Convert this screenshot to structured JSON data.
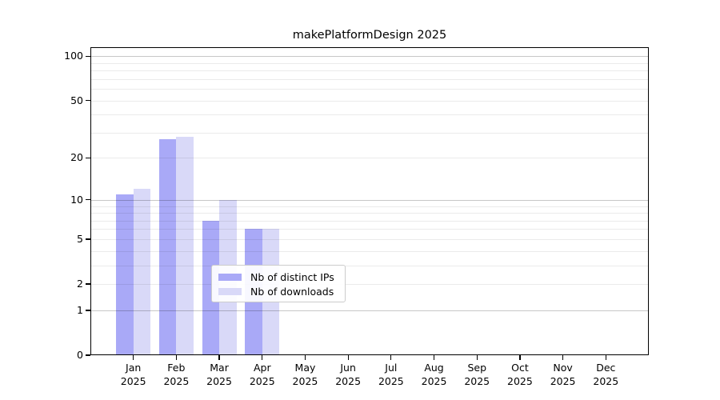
{
  "chart_data": {
    "type": "bar",
    "title": "makePlatformDesign 2025",
    "categories": [
      "Jan 2025",
      "Feb 2025",
      "Mar 2025",
      "Apr 2025",
      "May 2025",
      "Jun 2025",
      "Jul 2025",
      "Aug 2025",
      "Sep 2025",
      "Oct 2025",
      "Nov 2025",
      "Dec 2025"
    ],
    "series": [
      {
        "name": "Nb of distinct IPs",
        "color": "#a9a9f7",
        "values": [
          11,
          27,
          7,
          6,
          0,
          0,
          0,
          0,
          0,
          0,
          0,
          0
        ]
      },
      {
        "name": "Nb of downloads",
        "color": "#d9d9f8",
        "values": [
          12,
          28,
          10,
          6,
          0,
          0,
          0,
          0,
          0,
          0,
          0,
          0
        ]
      }
    ],
    "xlabel": "",
    "ylabel": "",
    "yscale": "log10(value+1)",
    "ylim": [
      0,
      115
    ],
    "ytick_values": [
      100,
      50,
      20,
      10,
      5,
      2,
      1,
      0
    ],
    "ytick_labels": [
      "100",
      "50",
      "20",
      "10",
      "5",
      "2",
      "1",
      "0"
    ],
    "grid": "horizontal",
    "grid_major_values": [
      1,
      10,
      100
    ],
    "grid_minor_values": [
      2,
      3,
      4,
      5,
      6,
      7,
      8,
      9,
      20,
      30,
      40,
      50,
      60,
      70,
      80,
      90
    ],
    "legend_position": "lower center",
    "bar_group_width_fraction": 0.8
  },
  "colors": {
    "background": "#ffffff",
    "spine": "#000000",
    "series_ips": "#a9a9f7",
    "series_downloads": "#d9d9f8",
    "grid_major": "#c6c6c6",
    "grid_minor": "#ebebeb",
    "legend_border": "#cccccc",
    "text": "#000000"
  }
}
